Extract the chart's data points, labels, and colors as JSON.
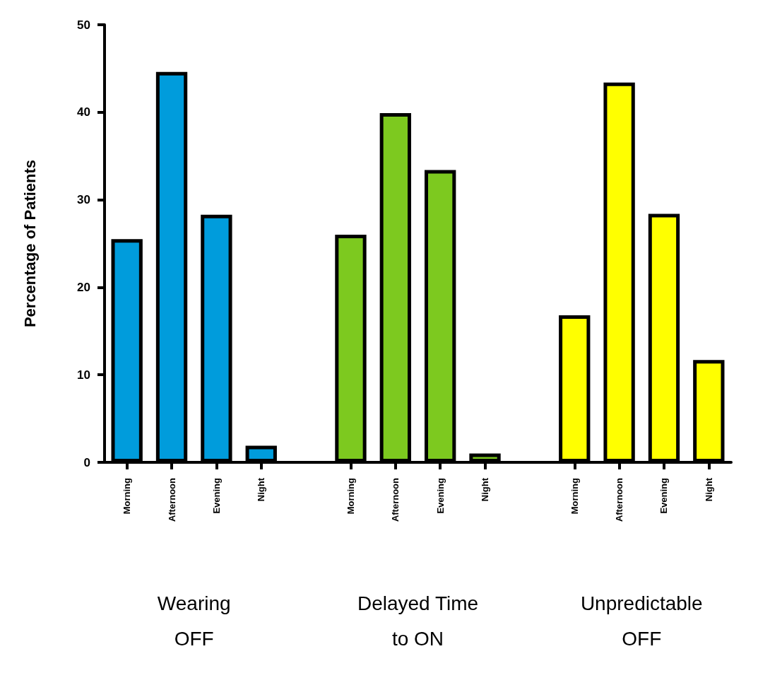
{
  "chart_data": {
    "type": "bar",
    "ylabel": "Percentage of Patients",
    "categories": [
      "Morning",
      "Afternoon",
      "Evening",
      "Night",
      null,
      "Morning",
      "Afternoon",
      "Evening",
      "Night",
      null,
      "Morning",
      "Afternoon",
      "Evening",
      "Night"
    ],
    "series": [
      {
        "color": "#009cdc",
        "values": [
          25.5,
          44.6,
          28.3,
          1.9,
          null,
          null,
          null,
          null,
          null,
          null,
          null,
          null,
          null,
          null
        ]
      },
      {
        "color": "#7dc91f",
        "values": [
          null,
          null,
          null,
          null,
          null,
          26.0,
          39.9,
          33.4,
          1.0,
          null,
          null,
          null,
          null,
          null
        ]
      },
      {
        "color": "#ffff00",
        "values": [
          null,
          null,
          null,
          null,
          null,
          null,
          null,
          null,
          null,
          null,
          16.8,
          43.4,
          28.4,
          11.7
        ]
      }
    ],
    "annotations": [
      "Wearing OFF",
      "Delayed Time to ON",
      "Unpredictable OFF"
    ],
    "stacked": true,
    "ylim": [
      0,
      50
    ],
    "yticks": [
      0,
      10,
      20,
      30,
      40,
      50
    ],
    "grid": false
  }
}
